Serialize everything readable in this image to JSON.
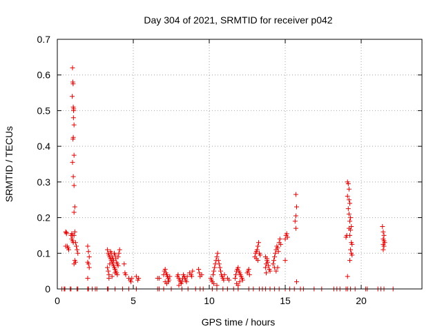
{
  "colors": {
    "marker": "#e00000",
    "grid": "#a0a0a0",
    "axis": "#000000",
    "background": "#ffffff"
  },
  "chart_data": {
    "type": "scatter",
    "title": "Day 304 of 2021, SRMTID for receiver p042",
    "xlabel": "GPS time / hours",
    "ylabel": "SRMTID / TECUs",
    "xlim": [
      0,
      24
    ],
    "ylim": [
      0,
      0.7
    ],
    "xticks": [
      0,
      5,
      10,
      15,
      20
    ],
    "yticks": [
      0,
      0.1,
      0.2,
      0.3,
      0.4,
      0.5,
      0.6,
      0.7
    ],
    "xtick_labels": [
      "0",
      "5",
      "10",
      "15",
      "20"
    ],
    "ytick_labels": [
      "0",
      "0.1",
      "0.2",
      "0.3",
      "0.4",
      "0.5",
      "0.6",
      "0.7"
    ],
    "grid": true,
    "marker": "plus",
    "series": [
      {
        "name": "SRMTID",
        "points": [
          [
            0.3,
            0
          ],
          [
            0.45,
            0
          ],
          [
            0.5,
            0
          ],
          [
            0.85,
            0
          ],
          [
            0.9,
            0
          ],
          [
            1.3,
            0
          ],
          [
            1.35,
            0
          ],
          [
            2.0,
            0
          ],
          [
            2.05,
            0
          ],
          [
            2.3,
            0
          ],
          [
            2.5,
            0
          ],
          [
            2.6,
            0
          ],
          [
            3.3,
            0
          ],
          [
            3.35,
            0
          ],
          [
            3.8,
            0
          ],
          [
            4.3,
            0
          ],
          [
            4.7,
            0
          ],
          [
            5.2,
            0
          ],
          [
            6.6,
            0
          ],
          [
            6.7,
            0
          ],
          [
            7.0,
            0
          ],
          [
            7.5,
            0
          ],
          [
            8.2,
            0
          ],
          [
            8.6,
            0
          ],
          [
            9.1,
            0
          ],
          [
            9.4,
            0
          ],
          [
            9.6,
            0
          ],
          [
            10.2,
            0
          ],
          [
            10.5,
            0
          ],
          [
            10.9,
            0
          ],
          [
            11.2,
            0
          ],
          [
            11.6,
            0
          ],
          [
            11.9,
            0
          ],
          [
            12.6,
            0
          ],
          [
            12.9,
            0
          ],
          [
            13.3,
            0
          ],
          [
            13.5,
            0
          ],
          [
            13.7,
            0
          ],
          [
            14.0,
            0
          ],
          [
            14.3,
            0
          ],
          [
            14.6,
            0
          ],
          [
            15.0,
            0
          ],
          [
            15.3,
            0
          ],
          [
            15.6,
            0
          ],
          [
            16.0,
            0
          ],
          [
            16.2,
            0
          ],
          [
            16.9,
            0
          ],
          [
            17.4,
            0
          ],
          [
            18.2,
            0
          ],
          [
            18.4,
            0
          ],
          [
            18.6,
            0
          ],
          [
            19.0,
            0
          ],
          [
            19.1,
            0
          ],
          [
            19.3,
            0
          ],
          [
            19.6,
            0
          ],
          [
            20.3,
            0
          ],
          [
            20.4,
            0
          ],
          [
            21.1,
            0
          ],
          [
            21.3,
            0
          ],
          [
            21.5,
            0
          ],
          [
            22.1,
            0
          ],
          [
            0.55,
            0.16
          ],
          [
            0.6,
            0.158
          ],
          [
            0.65,
            0.12
          ],
          [
            0.7,
            0.115
          ],
          [
            0.75,
            0.11
          ],
          [
            0.55,
            0.12
          ],
          [
            0.6,
            0.155
          ],
          [
            0.9,
            0.15
          ],
          [
            0.95,
            0.14
          ],
          [
            1.0,
            0.135
          ],
          [
            1.05,
            0.13
          ],
          [
            1.1,
            0.15
          ],
          [
            1.15,
            0.16
          ],
          [
            1.2,
            0.13
          ],
          [
            1.25,
            0.12
          ],
          [
            1.3,
            0.11
          ],
          [
            1.35,
            0.1
          ],
          [
            1.1,
            0.07
          ],
          [
            1.15,
            0.08
          ],
          [
            1.2,
            0.075
          ],
          [
            1.0,
            0.62
          ],
          [
            1.02,
            0.58
          ],
          [
            1.04,
            0.575
          ],
          [
            0.98,
            0.54
          ],
          [
            1.05,
            0.51
          ],
          [
            1.07,
            0.5
          ],
          [
            1.08,
            0.505
          ],
          [
            1.06,
            0.48
          ],
          [
            1.1,
            0.46
          ],
          [
            1.03,
            0.42
          ],
          [
            1.05,
            0.425
          ],
          [
            1.1,
            0.375
          ],
          [
            1.0,
            0.355
          ],
          [
            1.05,
            0.315
          ],
          [
            1.1,
            0.29
          ],
          [
            1.15,
            0.23
          ],
          [
            1.1,
            0.215
          ],
          [
            0.95,
            0.155
          ],
          [
            1.0,
            0.15
          ],
          [
            2.0,
            0.12
          ],
          [
            2.05,
            0.105
          ],
          [
            2.1,
            0.09
          ],
          [
            2.0,
            0.075
          ],
          [
            2.05,
            0.07
          ],
          [
            2.1,
            0.06
          ],
          [
            2.0,
            0.03
          ],
          [
            3.3,
            0.11
          ],
          [
            3.35,
            0.1
          ],
          [
            3.4,
            0.095
          ],
          [
            3.45,
            0.09
          ],
          [
            3.5,
            0.085
          ],
          [
            3.55,
            0.08
          ],
          [
            3.6,
            0.075
          ],
          [
            3.65,
            0.07
          ],
          [
            3.7,
            0.065
          ],
          [
            3.75,
            0.06
          ],
          [
            3.8,
            0.055
          ],
          [
            3.85,
            0.05
          ],
          [
            3.9,
            0.045
          ],
          [
            3.95,
            0.04
          ],
          [
            3.3,
            0.06
          ],
          [
            3.35,
            0.05
          ],
          [
            3.4,
            0.04
          ],
          [
            3.45,
            0.07
          ],
          [
            3.5,
            0.105
          ],
          [
            3.55,
            0.1
          ],
          [
            3.6,
            0.09
          ],
          [
            3.65,
            0.085
          ],
          [
            3.7,
            0.08
          ],
          [
            3.75,
            0.1
          ],
          [
            3.8,
            0.095
          ],
          [
            3.85,
            0.085
          ],
          [
            3.9,
            0.075
          ],
          [
            3.95,
            0.07
          ],
          [
            4.0,
            0.065
          ],
          [
            4.0,
            0.09
          ],
          [
            4.05,
            0.1
          ],
          [
            4.1,
            0.11
          ],
          [
            3.4,
            0.03
          ],
          [
            3.6,
            0.035
          ],
          [
            3.8,
            0.045
          ],
          [
            4.4,
            0.07
          ],
          [
            4.45,
            0.045
          ],
          [
            4.5,
            0.04
          ],
          [
            4.7,
            0.03
          ],
          [
            4.8,
            0.025
          ],
          [
            4.85,
            0.02
          ],
          [
            4.9,
            0.03
          ],
          [
            5.2,
            0.035
          ],
          [
            5.3,
            0.025
          ],
          [
            5.35,
            0.03
          ],
          [
            6.6,
            0.03
          ],
          [
            6.7,
            0.03
          ],
          [
            7.0,
            0.04
          ],
          [
            7.05,
            0.05
          ],
          [
            7.1,
            0.055
          ],
          [
            7.15,
            0.045
          ],
          [
            7.2,
            0.04
          ],
          [
            7.25,
            0.035
          ],
          [
            7.3,
            0.03
          ],
          [
            7.35,
            0.025
          ],
          [
            7.4,
            0.035
          ],
          [
            7.1,
            0.02
          ],
          [
            7.2,
            0.015
          ],
          [
            7.3,
            0.02
          ],
          [
            7.9,
            0.035
          ],
          [
            7.95,
            0.04
          ],
          [
            8.0,
            0.03
          ],
          [
            8.05,
            0.025
          ],
          [
            8.1,
            0.02
          ],
          [
            8.15,
            0.015
          ],
          [
            8.2,
            0.02
          ],
          [
            8.25,
            0.03
          ],
          [
            8.3,
            0.04
          ],
          [
            8.35,
            0.035
          ],
          [
            8.4,
            0.03
          ],
          [
            8.45,
            0.025
          ],
          [
            8.5,
            0.02
          ],
          [
            8.55,
            0.035
          ],
          [
            8.0,
            0.01
          ],
          [
            8.7,
            0.045
          ],
          [
            8.8,
            0.04
          ],
          [
            8.85,
            0.035
          ],
          [
            8.9,
            0.05
          ],
          [
            9.3,
            0.055
          ],
          [
            9.35,
            0.045
          ],
          [
            9.4,
            0.035
          ],
          [
            9.5,
            0.04
          ],
          [
            10.1,
            0.03
          ],
          [
            10.15,
            0.025
          ],
          [
            10.2,
            0.02
          ],
          [
            10.25,
            0.04
          ],
          [
            10.3,
            0.05
          ],
          [
            10.35,
            0.06
          ],
          [
            10.4,
            0.07
          ],
          [
            10.45,
            0.08
          ],
          [
            10.5,
            0.09
          ],
          [
            10.55,
            0.1
          ],
          [
            10.6,
            0.08
          ],
          [
            10.65,
            0.07
          ],
          [
            10.7,
            0.06
          ],
          [
            10.75,
            0.05
          ],
          [
            10.8,
            0.04
          ],
          [
            10.85,
            0.035
          ],
          [
            10.9,
            0.03
          ],
          [
            10.95,
            0.025
          ],
          [
            11.0,
            0.04
          ],
          [
            10.3,
            0.015
          ],
          [
            10.5,
            0.01
          ],
          [
            11.2,
            0.03
          ],
          [
            11.3,
            0.025
          ],
          [
            11.7,
            0.03
          ],
          [
            11.75,
            0.04
          ],
          [
            11.8,
            0.05
          ],
          [
            11.85,
            0.055
          ],
          [
            11.9,
            0.06
          ],
          [
            11.95,
            0.05
          ],
          [
            12.0,
            0.045
          ],
          [
            12.05,
            0.04
          ],
          [
            12.1,
            0.035
          ],
          [
            12.15,
            0.03
          ],
          [
            12.2,
            0.025
          ],
          [
            11.8,
            0.015
          ],
          [
            11.9,
            0.01
          ],
          [
            12.0,
            0.02
          ],
          [
            12.5,
            0.045
          ],
          [
            12.55,
            0.05
          ],
          [
            12.6,
            0.055
          ],
          [
            12.65,
            0.04
          ],
          [
            13.0,
            0.09
          ],
          [
            13.05,
            0.1
          ],
          [
            13.1,
            0.105
          ],
          [
            13.15,
            0.11
          ],
          [
            13.2,
            0.12
          ],
          [
            13.25,
            0.13
          ],
          [
            13.3,
            0.1
          ],
          [
            13.35,
            0.095
          ],
          [
            13.1,
            0.085
          ],
          [
            13.2,
            0.08
          ],
          [
            13.7,
            0.06
          ],
          [
            13.75,
            0.07
          ],
          [
            13.8,
            0.08
          ],
          [
            13.85,
            0.075
          ],
          [
            13.9,
            0.065
          ],
          [
            13.95,
            0.055
          ],
          [
            14.0,
            0.05
          ],
          [
            13.7,
            0.09
          ],
          [
            13.8,
            0.085
          ],
          [
            13.75,
            0.045
          ],
          [
            14.2,
            0.07
          ],
          [
            14.25,
            0.08
          ],
          [
            14.3,
            0.09
          ],
          [
            14.35,
            0.1
          ],
          [
            14.4,
            0.11
          ],
          [
            14.45,
            0.12
          ],
          [
            14.5,
            0.115
          ],
          [
            14.55,
            0.105
          ],
          [
            14.6,
            0.13
          ],
          [
            14.65,
            0.14
          ],
          [
            14.7,
            0.125
          ],
          [
            14.3,
            0.06
          ],
          [
            14.4,
            0.05
          ],
          [
            14.5,
            0.06
          ],
          [
            15.0,
            0.14
          ],
          [
            15.05,
            0.15
          ],
          [
            15.1,
            0.155
          ],
          [
            15.15,
            0.145
          ],
          [
            15.0,
            0.08
          ],
          [
            15.7,
            0.265
          ],
          [
            15.75,
            0.23
          ],
          [
            15.7,
            0.205
          ],
          [
            15.65,
            0.19
          ],
          [
            15.7,
            0.17
          ],
          [
            15.75,
            0.02
          ],
          [
            19.0,
            0.145
          ],
          [
            19.05,
            0.15
          ],
          [
            19.1,
            0.3
          ],
          [
            19.15,
            0.295
          ],
          [
            19.2,
            0.28
          ],
          [
            19.1,
            0.26
          ],
          [
            19.2,
            0.25
          ],
          [
            19.25,
            0.24
          ],
          [
            19.15,
            0.225
          ],
          [
            19.2,
            0.21
          ],
          [
            19.3,
            0.2
          ],
          [
            19.25,
            0.19
          ],
          [
            19.35,
            0.175
          ],
          [
            19.2,
            0.17
          ],
          [
            19.3,
            0.165
          ],
          [
            19.25,
            0.15
          ],
          [
            19.35,
            0.13
          ],
          [
            19.4,
            0.125
          ],
          [
            19.3,
            0.11
          ],
          [
            19.35,
            0.1
          ],
          [
            19.4,
            0.095
          ],
          [
            19.25,
            0.08
          ],
          [
            19.1,
            0.035
          ],
          [
            21.4,
            0.175
          ],
          [
            21.45,
            0.16
          ],
          [
            21.5,
            0.15
          ],
          [
            21.45,
            0.14
          ],
          [
            21.5,
            0.135
          ],
          [
            21.55,
            0.13
          ],
          [
            21.45,
            0.125
          ],
          [
            21.5,
            0.12
          ],
          [
            21.45,
            0.11
          ]
        ]
      }
    ]
  }
}
